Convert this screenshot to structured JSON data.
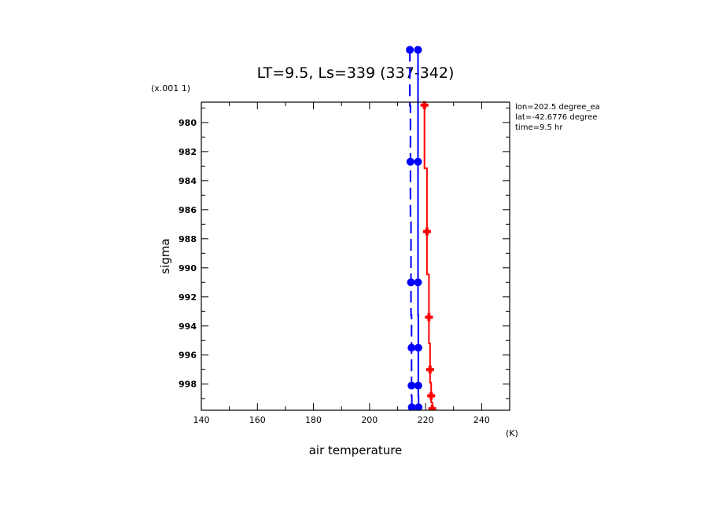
{
  "chart_data": {
    "type": "line",
    "title": "LT=9.5, Ls=339 (337-342)",
    "xlabel": "air temperature",
    "ylabel": "sigma",
    "x_unit": "(K)",
    "y_unit": "(x.001 1)",
    "xlim": [
      140,
      250
    ],
    "ylim": [
      999.8,
      978.6
    ],
    "x_ticks": [
      140,
      160,
      180,
      200,
      220,
      240
    ],
    "y_ticks": [
      980,
      982,
      984,
      986,
      988,
      990,
      992,
      994,
      996,
      998
    ],
    "grid": false,
    "annotations": [
      "lon=202.5 degree_ea",
      "lat=-42.6776 degree",
      "time=9.5 hr"
    ],
    "series": [
      {
        "color": "#ff0000",
        "line_style": "solid",
        "marker": "cross",
        "points": [
          {
            "x": 219.6,
            "y": 978.8
          },
          {
            "x": 220.5,
            "y": 987.5
          },
          {
            "x": 221.2,
            "y": 993.4
          },
          {
            "x": 221.6,
            "y": 997.0
          },
          {
            "x": 222.0,
            "y": 998.8
          },
          {
            "x": 222.4,
            "y": 999.7
          }
        ]
      },
      {
        "color": "#0000ff",
        "line_style": "solid",
        "marker": "circle",
        "points": [
          {
            "x": 217.3,
            "y": 975.0
          },
          {
            "x": 217.3,
            "y": 982.7
          },
          {
            "x": 217.3,
            "y": 991.0
          },
          {
            "x": 217.4,
            "y": 995.5
          },
          {
            "x": 217.4,
            "y": 998.1
          },
          {
            "x": 217.5,
            "y": 999.6
          }
        ]
      },
      {
        "color": "#0000ff",
        "line_style": "dashed",
        "marker": "circle",
        "points": [
          {
            "x": 214.4,
            "y": 975.0
          },
          {
            "x": 214.6,
            "y": 982.7
          },
          {
            "x": 214.8,
            "y": 991.0
          },
          {
            "x": 215.0,
            "y": 995.5
          },
          {
            "x": 215.0,
            "y": 998.1
          },
          {
            "x": 215.1,
            "y": 999.6
          }
        ]
      }
    ]
  }
}
